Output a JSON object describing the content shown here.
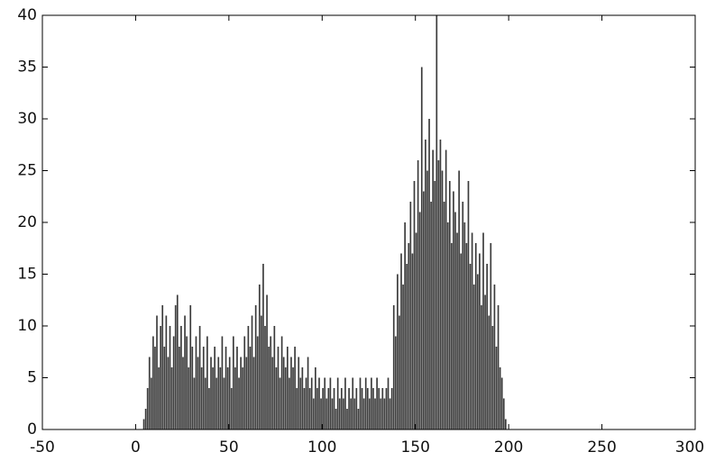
{
  "chart_data": {
    "type": "histogram",
    "color": "#3a3a3a",
    "bins": [
      4,
      5,
      6,
      7,
      8,
      9,
      10,
      11,
      12,
      13,
      14,
      15,
      16,
      17,
      18,
      19,
      20,
      21,
      22,
      23,
      24,
      25,
      26,
      27,
      28,
      29,
      30,
      31,
      32,
      33,
      34,
      35,
      36,
      37,
      38,
      39,
      40,
      41,
      42,
      43,
      44,
      45,
      46,
      47,
      48,
      49,
      50,
      51,
      52,
      53,
      54,
      55,
      56,
      57,
      58,
      59,
      60,
      61,
      62,
      63,
      64,
      65,
      66,
      67,
      68,
      69,
      70,
      71,
      72,
      73,
      74,
      75,
      76,
      77,
      78,
      79,
      80,
      81,
      82,
      83,
      84,
      85,
      86,
      87,
      88,
      89,
      90,
      91,
      92,
      93,
      94,
      95,
      96,
      97,
      98,
      99,
      100,
      101,
      102,
      103,
      104,
      105,
      106,
      107,
      108,
      109,
      110,
      111,
      112,
      113,
      114,
      115,
      116,
      117,
      118,
      119,
      120,
      121,
      122,
      123,
      124,
      125,
      126,
      127,
      128,
      129,
      130,
      131,
      132,
      133,
      134,
      135,
      136,
      137,
      138,
      139,
      140,
      141,
      142,
      143,
      144,
      145,
      146,
      147,
      148,
      149,
      150,
      151,
      152,
      153,
      154,
      155,
      156,
      157,
      158,
      159,
      160,
      161,
      162,
      163,
      164,
      165,
      166,
      167,
      168,
      169,
      170,
      171,
      172,
      173,
      174,
      175,
      176,
      177,
      178,
      179,
      180,
      181,
      182,
      183,
      184,
      185,
      186,
      187,
      188,
      189,
      190,
      191,
      192,
      193,
      194,
      195,
      196,
      197,
      198,
      199,
      200,
      201
    ],
    "values": [
      1,
      2,
      4,
      7,
      5,
      9,
      8,
      11,
      6,
      10,
      12,
      8,
      11,
      7,
      10,
      6,
      9,
      12,
      13,
      8,
      10,
      7,
      11,
      9,
      6,
      12,
      8,
      5,
      9,
      7,
      10,
      6,
      8,
      5,
      9,
      4,
      7,
      6,
      8,
      5,
      7,
      6,
      9,
      5,
      8,
      6,
      7,
      4,
      9,
      6,
      8,
      5,
      7,
      6,
      9,
      7,
      10,
      8,
      11,
      7,
      12,
      9,
      14,
      11,
      16,
      10,
      13,
      8,
      9,
      7,
      10,
      6,
      8,
      5,
      9,
      7,
      6,
      8,
      5,
      7,
      6,
      8,
      4,
      7,
      5,
      6,
      4,
      5,
      7,
      4,
      5,
      3,
      6,
      4,
      5,
      3,
      4,
      5,
      3,
      4,
      5,
      3,
      4,
      2,
      5,
      3,
      4,
      3,
      5,
      2,
      4,
      3,
      5,
      3,
      4,
      2,
      5,
      4,
      3,
      5,
      4,
      3,
      5,
      4,
      3,
      5,
      4,
      3,
      4,
      3,
      4,
      5,
      3,
      4,
      12,
      9,
      15,
      11,
      17,
      14,
      20,
      16,
      18,
      22,
      17,
      24,
      19,
      26,
      21,
      35,
      23,
      28,
      25,
      30,
      22,
      27,
      24,
      40,
      26,
      28,
      25,
      22,
      27,
      20,
      24,
      18,
      23,
      21,
      19,
      25,
      17,
      22,
      20,
      18,
      24,
      16,
      19,
      14,
      18,
      15,
      17,
      12,
      19,
      13,
      16,
      11,
      18,
      10,
      14,
      8,
      12,
      6,
      5,
      3,
      1,
      0,
      0
    ],
    "xlim": [
      -50,
      300
    ],
    "xticks": [
      -50,
      0,
      50,
      100,
      150,
      200,
      250,
      300
    ],
    "ylim": [
      0,
      40
    ],
    "yticks": [
      0,
      5,
      10,
      15,
      20,
      25,
      30,
      35,
      40
    ]
  }
}
